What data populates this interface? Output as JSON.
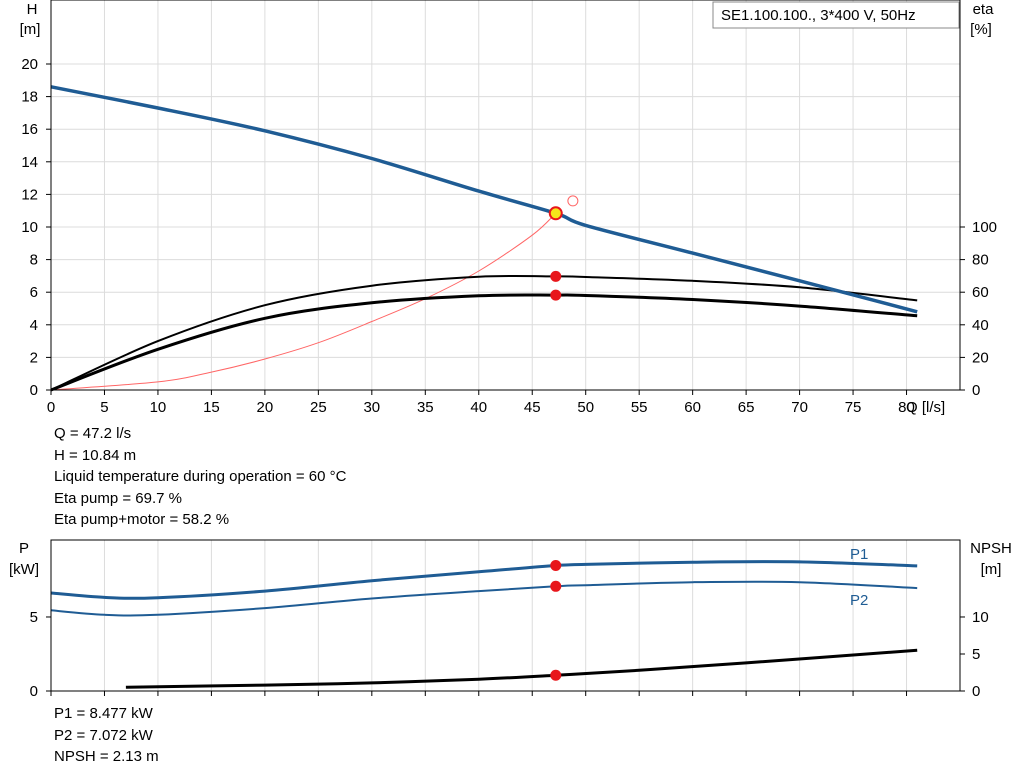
{
  "chart_data": [
    {
      "type": "line",
      "title": "SE1.100.100., 3*400 V, 50Hz",
      "xlabel": "Q [l/s]",
      "ylabel_left": [
        "H",
        "[m]"
      ],
      "ylabel_right": [
        "eta",
        "[%]"
      ],
      "xlim": [
        0,
        85
      ],
      "ylim_left": [
        0,
        20
      ],
      "ylim_right": [
        0,
        100
      ],
      "x_ticks": [
        0,
        5,
        10,
        15,
        20,
        25,
        30,
        35,
        40,
        45,
        50,
        55,
        60,
        65,
        70,
        75,
        80
      ],
      "y_ticks_left": [
        0,
        2,
        4,
        6,
        8,
        10,
        12,
        14,
        16,
        18,
        20
      ],
      "y_ticks_right": [
        0,
        20,
        40,
        60,
        80,
        100
      ],
      "grid": true,
      "series": [
        {
          "axis": "left",
          "color": "#1f5c94",
          "x": [
            0,
            10,
            20,
            30,
            40,
            47.2,
            50,
            60,
            70,
            81
          ],
          "y": [
            18.6,
            17.3,
            15.9,
            14.2,
            12.2,
            10.84,
            10.1,
            8.4,
            6.7,
            4.8
          ]
        },
        {
          "axis": "right",
          "color": "#000000",
          "x": [
            0,
            10,
            20,
            30,
            40,
            47.2,
            50,
            60,
            70,
            81
          ],
          "y": [
            0,
            30,
            52,
            64,
            69.5,
            69.7,
            69.3,
            67,
            63,
            55
          ]
        },
        {
          "axis": "right",
          "color": "#000000",
          "x": [
            0,
            10,
            20,
            30,
            40,
            47.2,
            50,
            60,
            70,
            81
          ],
          "y": [
            0,
            25,
            44,
            53.5,
            57.8,
            58.2,
            58,
            55.5,
            51.5,
            45.5
          ]
        },
        {
          "axis": "left",
          "color": "#ff6666",
          "x": [
            0,
            10,
            15,
            20,
            25,
            30,
            35,
            40,
            45,
            47.2
          ],
          "y": [
            0,
            0.5,
            1.1,
            1.9,
            2.9,
            4.2,
            5.6,
            7.3,
            9.5,
            10.84
          ]
        }
      ],
      "operating_point": {
        "x": 47.2,
        "h": 10.84,
        "eta_pump": 69.7,
        "eta_total": 58.2
      },
      "open_marker": {
        "x": 48.8,
        "h": 11.6
      }
    },
    {
      "type": "line",
      "ylabel_left": [
        "P",
        "[kW]"
      ],
      "ylabel_right": [
        "NPSH",
        "[m]"
      ],
      "xlim": [
        0,
        85
      ],
      "ylim_left": [
        0,
        10.2
      ],
      "ylim_right": [
        0,
        20.4
      ],
      "y_ticks_left": [
        0,
        5
      ],
      "y_ticks_right": [
        0,
        5,
        10
      ],
      "grid": true,
      "series": [
        {
          "name": "P1",
          "axis": "left",
          "color": "#1f5c94",
          "x": [
            0,
            5,
            10,
            20,
            30,
            40,
            47.2,
            50,
            60,
            70,
            81
          ],
          "y": [
            6.62,
            6.32,
            6.3,
            6.75,
            7.45,
            8.05,
            8.477,
            8.55,
            8.7,
            8.72,
            8.45
          ]
        },
        {
          "name": "P2",
          "axis": "left",
          "color": "#1f5c94",
          "x": [
            0,
            5,
            10,
            20,
            30,
            40,
            47.2,
            50,
            60,
            70,
            81
          ],
          "y": [
            5.45,
            5.15,
            5.15,
            5.6,
            6.25,
            6.75,
            7.072,
            7.15,
            7.35,
            7.35,
            6.95
          ]
        },
        {
          "name": "NPSH",
          "axis": "right",
          "color": "#000000",
          "x": [
            7,
            20,
            30,
            40,
            47.2,
            55,
            65,
            81
          ],
          "y": [
            0.5,
            0.8,
            1.1,
            1.6,
            2.13,
            2.8,
            3.8,
            5.5
          ]
        }
      ],
      "operating_point": {
        "x": 47.2,
        "p1": 8.477,
        "p2": 7.072,
        "npsh": 2.13
      }
    }
  ],
  "info_top": [
    "Q = 47.2 l/s",
    "H = 10.84 m",
    "Liquid temperature during operation = 60 °C",
    "Eta pump = 69.7 %",
    "Eta pump+motor = 58.2 %"
  ],
  "info_bottom": [
    "P1 = 8.477 kW",
    "P2 = 7.072 kW",
    "NPSH = 2.13 m"
  ]
}
